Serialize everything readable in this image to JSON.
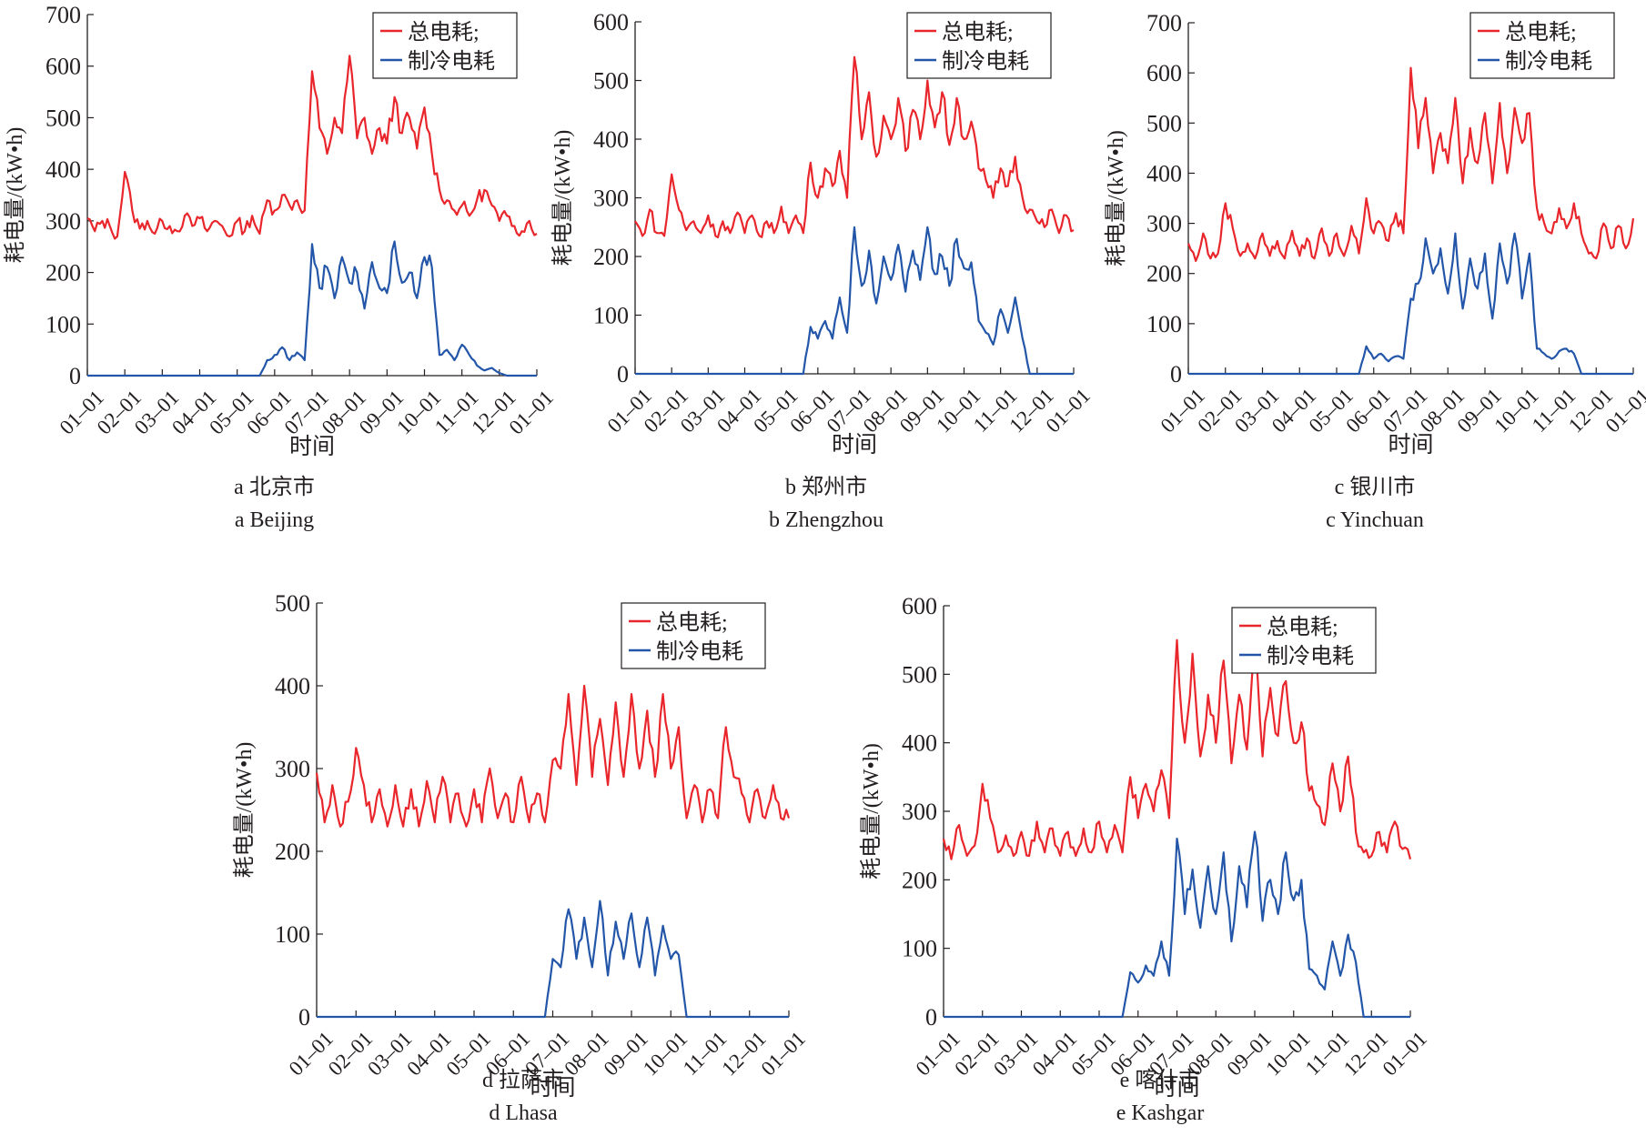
{
  "legend": {
    "total": "总电耗;",
    "cooling": "制冷电耗"
  },
  "colors": {
    "total": "#e8262b",
    "cooling": "#2356a8",
    "axis": "#231f20"
  },
  "chart_data": [
    {
      "type": "line",
      "id": "a",
      "caption_cn": "a  北京市",
      "caption_en": "a  Beijing",
      "xlabel": "时间",
      "ylabel": "耗电量/(kW•h)",
      "ylim": [
        0,
        700
      ],
      "yticks": [
        0,
        100,
        200,
        300,
        400,
        500,
        600,
        700
      ],
      "xticks": [
        "01–01",
        "02–01",
        "03–01",
        "04–01",
        "05–01",
        "06–01",
        "07–01",
        "08–01",
        "09–01",
        "10–01",
        "11–01",
        "12–01",
        "01–01"
      ],
      "x_unit": "day_of_year_sampled_every_6_days",
      "series": [
        {
          "name": "总电耗",
          "key": "total",
          "values": [
            305,
            280,
            300,
            290,
            270,
            395,
            320,
            285,
            300,
            275,
            300,
            290,
            280,
            310,
            290,
            305,
            280,
            300,
            290,
            270,
            300,
            280,
            310,
            275,
            340,
            320,
            350,
            330,
            340,
            320,
            590,
            480,
            430,
            500,
            470,
            620,
            460,
            500,
            430,
            480,
            450,
            540,
            470,
            500,
            440,
            520,
            430,
            360,
            340,
            320,
            330,
            310,
            340,
            360,
            330,
            300,
            310,
            290,
            280,
            300,
            275
          ]
        },
        {
          "name": "制冷电耗",
          "key": "cooling",
          "values": [
            0,
            0,
            0,
            0,
            0,
            0,
            0,
            0,
            0,
            0,
            0,
            0,
            0,
            0,
            0,
            0,
            0,
            0,
            0,
            0,
            0,
            0,
            0,
            0,
            30,
            40,
            55,
            30,
            45,
            30,
            255,
            170,
            210,
            150,
            230,
            180,
            200,
            130,
            220,
            170,
            160,
            260,
            180,
            200,
            150,
            230,
            210,
            40,
            50,
            30,
            60,
            40,
            20,
            10,
            15,
            5,
            0,
            0,
            0,
            0,
            0
          ]
        }
      ]
    },
    {
      "type": "line",
      "id": "b",
      "caption_cn": "b  郑州市",
      "caption_en": "b  Zhengzhou",
      "xlabel": "时间",
      "ylabel": "耗电量/(kW•h)",
      "ylim": [
        0,
        600
      ],
      "yticks": [
        0,
        100,
        200,
        300,
        400,
        500,
        600
      ],
      "xticks": [
        "01–01",
        "02–01",
        "03–01",
        "04–01",
        "05–01",
        "06–01",
        "07–01",
        "08–01",
        "09–01",
        "10–01",
        "11–01",
        "12–01",
        "01–01"
      ],
      "x_unit": "day_of_year_sampled_every_6_days",
      "series": [
        {
          "name": "总电耗",
          "key": "total",
          "values": [
            260,
            235,
            280,
            240,
            235,
            340,
            280,
            245,
            260,
            240,
            270,
            235,
            260,
            240,
            275,
            240,
            270,
            235,
            260,
            240,
            285,
            240,
            270,
            240,
            360,
            300,
            350,
            320,
            380,
            300,
            540,
            400,
            480,
            370,
            440,
            400,
            470,
            380,
            450,
            400,
            500,
            420,
            480,
            390,
            470,
            400,
            430,
            350,
            330,
            300,
            350,
            320,
            370,
            300,
            280,
            260,
            250,
            280,
            240,
            270,
            245
          ]
        },
        {
          "name": "制冷电耗",
          "key": "cooling",
          "values": [
            0,
            0,
            0,
            0,
            0,
            0,
            0,
            0,
            0,
            0,
            0,
            0,
            0,
            0,
            0,
            0,
            0,
            0,
            0,
            0,
            0,
            0,
            0,
            0,
            80,
            60,
            90,
            60,
            130,
            70,
            250,
            150,
            210,
            120,
            200,
            160,
            220,
            140,
            210,
            160,
            250,
            170,
            200,
            150,
            230,
            180,
            190,
            90,
            70,
            50,
            110,
            70,
            130,
            60,
            0,
            0,
            0,
            0,
            0,
            0,
            0
          ]
        }
      ]
    },
    {
      "type": "line",
      "id": "c",
      "caption_cn": "c  银川市",
      "caption_en": "c  Yinchuan",
      "xlabel": "时间",
      "ylabel": "耗电量/(kW•h)",
      "ylim": [
        0,
        700
      ],
      "yticks": [
        0,
        100,
        200,
        300,
        400,
        500,
        600,
        700
      ],
      "xticks": [
        "01–01",
        "02–01",
        "03–01",
        "04–01",
        "05–01",
        "06–01",
        "07–01",
        "08–01",
        "09–01",
        "10–01",
        "11–01",
        "12–01",
        "01–01"
      ],
      "x_unit": "day_of_year_sampled_every_6_days",
      "series": [
        {
          "name": "总电耗",
          "key": "total",
          "values": [
            260,
            225,
            280,
            230,
            240,
            340,
            290,
            235,
            260,
            230,
            280,
            235,
            265,
            230,
            285,
            235,
            270,
            230,
            290,
            235,
            280,
            235,
            295,
            240,
            350,
            280,
            300,
            265,
            320,
            280,
            610,
            450,
            550,
            400,
            480,
            420,
            550,
            380,
            490,
            420,
            520,
            380,
            540,
            400,
            530,
            460,
            520,
            330,
            300,
            280,
            330,
            290,
            340,
            280,
            240,
            230,
            300,
            250,
            295,
            250,
            310
          ]
        },
        {
          "name": "制冷电耗",
          "key": "cooling",
          "values": [
            0,
            0,
            0,
            0,
            0,
            0,
            0,
            0,
            0,
            0,
            0,
            0,
            0,
            0,
            0,
            0,
            0,
            0,
            0,
            0,
            0,
            0,
            0,
            0,
            55,
            30,
            40,
            25,
            35,
            30,
            150,
            180,
            270,
            200,
            250,
            160,
            280,
            130,
            230,
            170,
            240,
            110,
            260,
            180,
            280,
            150,
            240,
            50,
            40,
            30,
            45,
            50,
            40,
            0,
            0,
            0,
            0,
            0,
            0,
            0,
            0
          ]
        }
      ]
    },
    {
      "type": "line",
      "id": "d",
      "caption_cn": "d  拉萨市",
      "caption_en": "d  Lhasa",
      "xlabel": "时间",
      "ylabel": "耗电量/(kW•h)",
      "ylim": [
        0,
        500
      ],
      "yticks": [
        0,
        100,
        200,
        300,
        400,
        500
      ],
      "xticks": [
        "01–01",
        "02–01",
        "03–01",
        "04–01",
        "05–01",
        "06–01",
        "07–01",
        "08–01",
        "09–01",
        "10–01",
        "11–01",
        "12–01",
        "01–01"
      ],
      "x_unit": "day_of_year_sampled_every_6_days",
      "series": [
        {
          "name": "总电耗",
          "key": "total",
          "values": [
            295,
            235,
            280,
            230,
            260,
            325,
            280,
            235,
            275,
            230,
            280,
            230,
            275,
            230,
            285,
            235,
            290,
            235,
            270,
            230,
            275,
            235,
            300,
            240,
            270,
            235,
            290,
            235,
            270,
            235,
            310,
            300,
            390,
            280,
            400,
            290,
            360,
            280,
            380,
            290,
            390,
            300,
            370,
            290,
            390,
            300,
            350,
            240,
            280,
            235,
            275,
            240,
            350,
            290,
            270,
            235,
            275,
            240,
            280,
            240,
            240
          ]
        },
        {
          "name": "制冷电耗",
          "key": "cooling",
          "values": [
            0,
            0,
            0,
            0,
            0,
            0,
            0,
            0,
            0,
            0,
            0,
            0,
            0,
            0,
            0,
            0,
            0,
            0,
            0,
            0,
            0,
            0,
            0,
            0,
            0,
            0,
            0,
            0,
            0,
            0,
            70,
            60,
            130,
            70,
            120,
            60,
            140,
            50,
            115,
            70,
            125,
            60,
            120,
            50,
            110,
            70,
            75,
            0,
            0,
            0,
            0,
            0,
            0,
            0,
            0,
            0,
            0,
            0,
            0,
            0,
            0
          ]
        }
      ]
    },
    {
      "type": "line",
      "id": "e",
      "caption_cn": "e  喀什市",
      "caption_en": "e  Kashgar",
      "xlabel": "时间",
      "ylabel": "耗电量/(kW•h)",
      "ylim": [
        0,
        600
      ],
      "yticks": [
        0,
        100,
        200,
        300,
        400,
        500,
        600
      ],
      "xticks": [
        "01–01",
        "02–01",
        "03–01",
        "04–01",
        "05–01",
        "06–01",
        "07–01",
        "08–01",
        "09–01",
        "10–01",
        "11–01",
        "12–01",
        "01–01"
      ],
      "x_unit": "day_of_year_sampled_every_6_days",
      "series": [
        {
          "name": "总电耗",
          "key": "total",
          "values": [
            260,
            230,
            280,
            235,
            250,
            340,
            290,
            240,
            265,
            235,
            270,
            235,
            285,
            240,
            275,
            235,
            270,
            235,
            275,
            240,
            285,
            240,
            280,
            240,
            350,
            290,
            340,
            300,
            360,
            290,
            550,
            400,
            530,
            380,
            470,
            400,
            520,
            370,
            470,
            390,
            540,
            380,
            480,
            410,
            490,
            400,
            430,
            330,
            310,
            280,
            370,
            300,
            380,
            270,
            240,
            235,
            270,
            240,
            285,
            245,
            230
          ]
        },
        {
          "name": "制冷电耗",
          "key": "cooling",
          "values": [
            0,
            0,
            0,
            0,
            0,
            0,
            0,
            0,
            0,
            0,
            0,
            0,
            0,
            0,
            0,
            0,
            0,
            0,
            0,
            0,
            0,
            0,
            0,
            0,
            65,
            50,
            75,
            60,
            110,
            60,
            260,
            150,
            215,
            130,
            220,
            150,
            240,
            110,
            220,
            160,
            270,
            140,
            200,
            150,
            240,
            170,
            200,
            70,
            60,
            40,
            110,
            60,
            120,
            80,
            0,
            0,
            0,
            0,
            0,
            0,
            0
          ]
        }
      ]
    }
  ]
}
